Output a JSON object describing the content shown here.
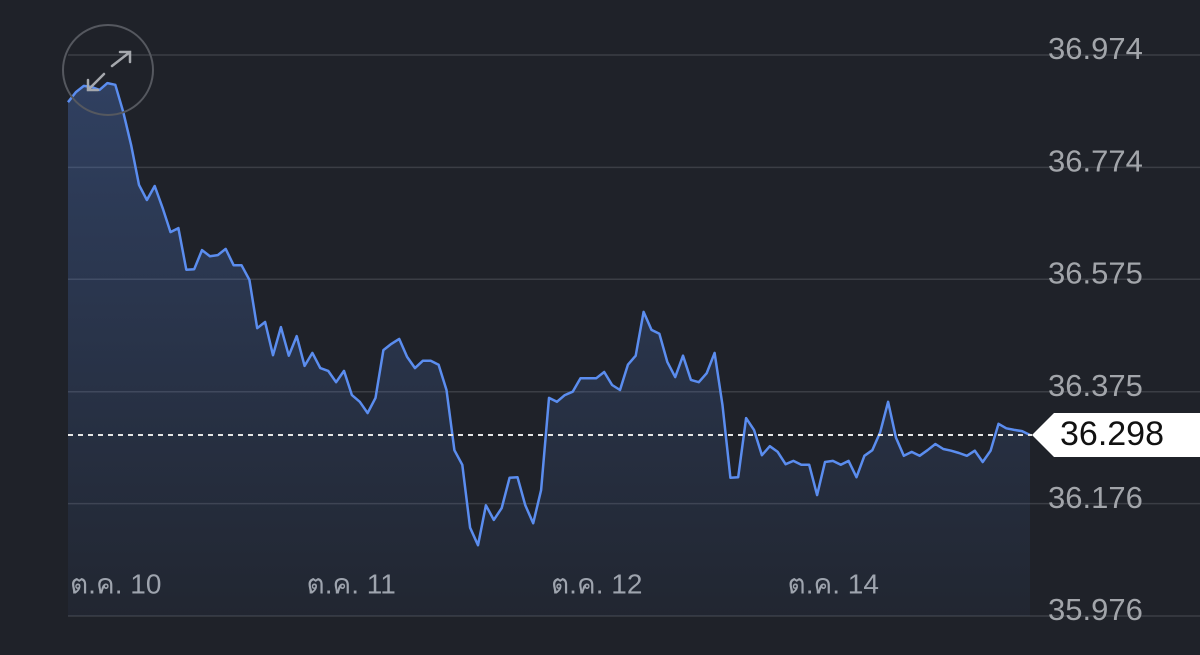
{
  "chart_data": {
    "type": "line",
    "values": [
      36.89,
      36.908,
      36.919,
      36.917,
      36.912,
      36.924,
      36.921,
      36.873,
      36.814,
      36.743,
      36.716,
      36.741,
      36.702,
      36.659,
      36.666,
      36.592,
      36.593,
      36.627,
      36.616,
      36.618,
      36.629,
      36.6,
      36.6,
      36.574,
      36.488,
      36.499,
      36.44,
      36.49,
      36.439,
      36.474,
      36.421,
      36.444,
      36.417,
      36.412,
      36.392,
      36.412,
      36.369,
      36.357,
      36.337,
      36.364,
      36.449,
      36.46,
      36.469,
      36.437,
      36.417,
      36.43,
      36.43,
      36.423,
      36.378,
      36.271,
      36.245,
      36.133,
      36.102,
      36.173,
      36.147,
      36.168,
      36.222,
      36.223,
      36.173,
      36.141,
      36.2,
      36.364,
      36.357,
      36.369,
      36.375,
      36.399,
      36.399,
      36.399,
      36.41,
      36.387,
      36.378,
      36.423,
      36.439,
      36.517,
      36.485,
      36.478,
      36.428,
      36.401,
      36.439,
      36.396,
      36.392,
      36.408,
      36.444,
      36.351,
      36.222,
      36.223,
      36.328,
      36.307,
      36.262,
      36.278,
      36.268,
      36.246,
      36.252,
      36.245,
      36.245,
      36.191,
      36.25,
      36.252,
      36.245,
      36.252,
      36.223,
      36.261,
      36.271,
      36.303,
      36.357,
      36.293,
      36.261,
      36.268,
      36.261,
      36.271,
      36.282,
      36.273,
      36.27,
      36.266,
      36.261,
      36.27,
      36.25,
      36.27,
      36.318,
      36.31,
      36.307,
      36.305,
      36.298
    ],
    "color": "#5b8def",
    "xlim": [
      0,
      122
    ],
    "xticks": [
      {
        "value": 0,
        "label": "ต.ค. 10"
      },
      {
        "value": 30,
        "label": "ต.ค. 11"
      },
      {
        "value": 61,
        "label": "ต.ค. 12"
      },
      {
        "value": 91,
        "label": "ต.ค. 14"
      }
    ],
    "ylim": [
      35.976,
      36.974
    ],
    "yticks": [
      36.974,
      36.774,
      36.575,
      36.375,
      36.176,
      35.976
    ],
    "grid": true,
    "last_value": 36.298
  }
}
